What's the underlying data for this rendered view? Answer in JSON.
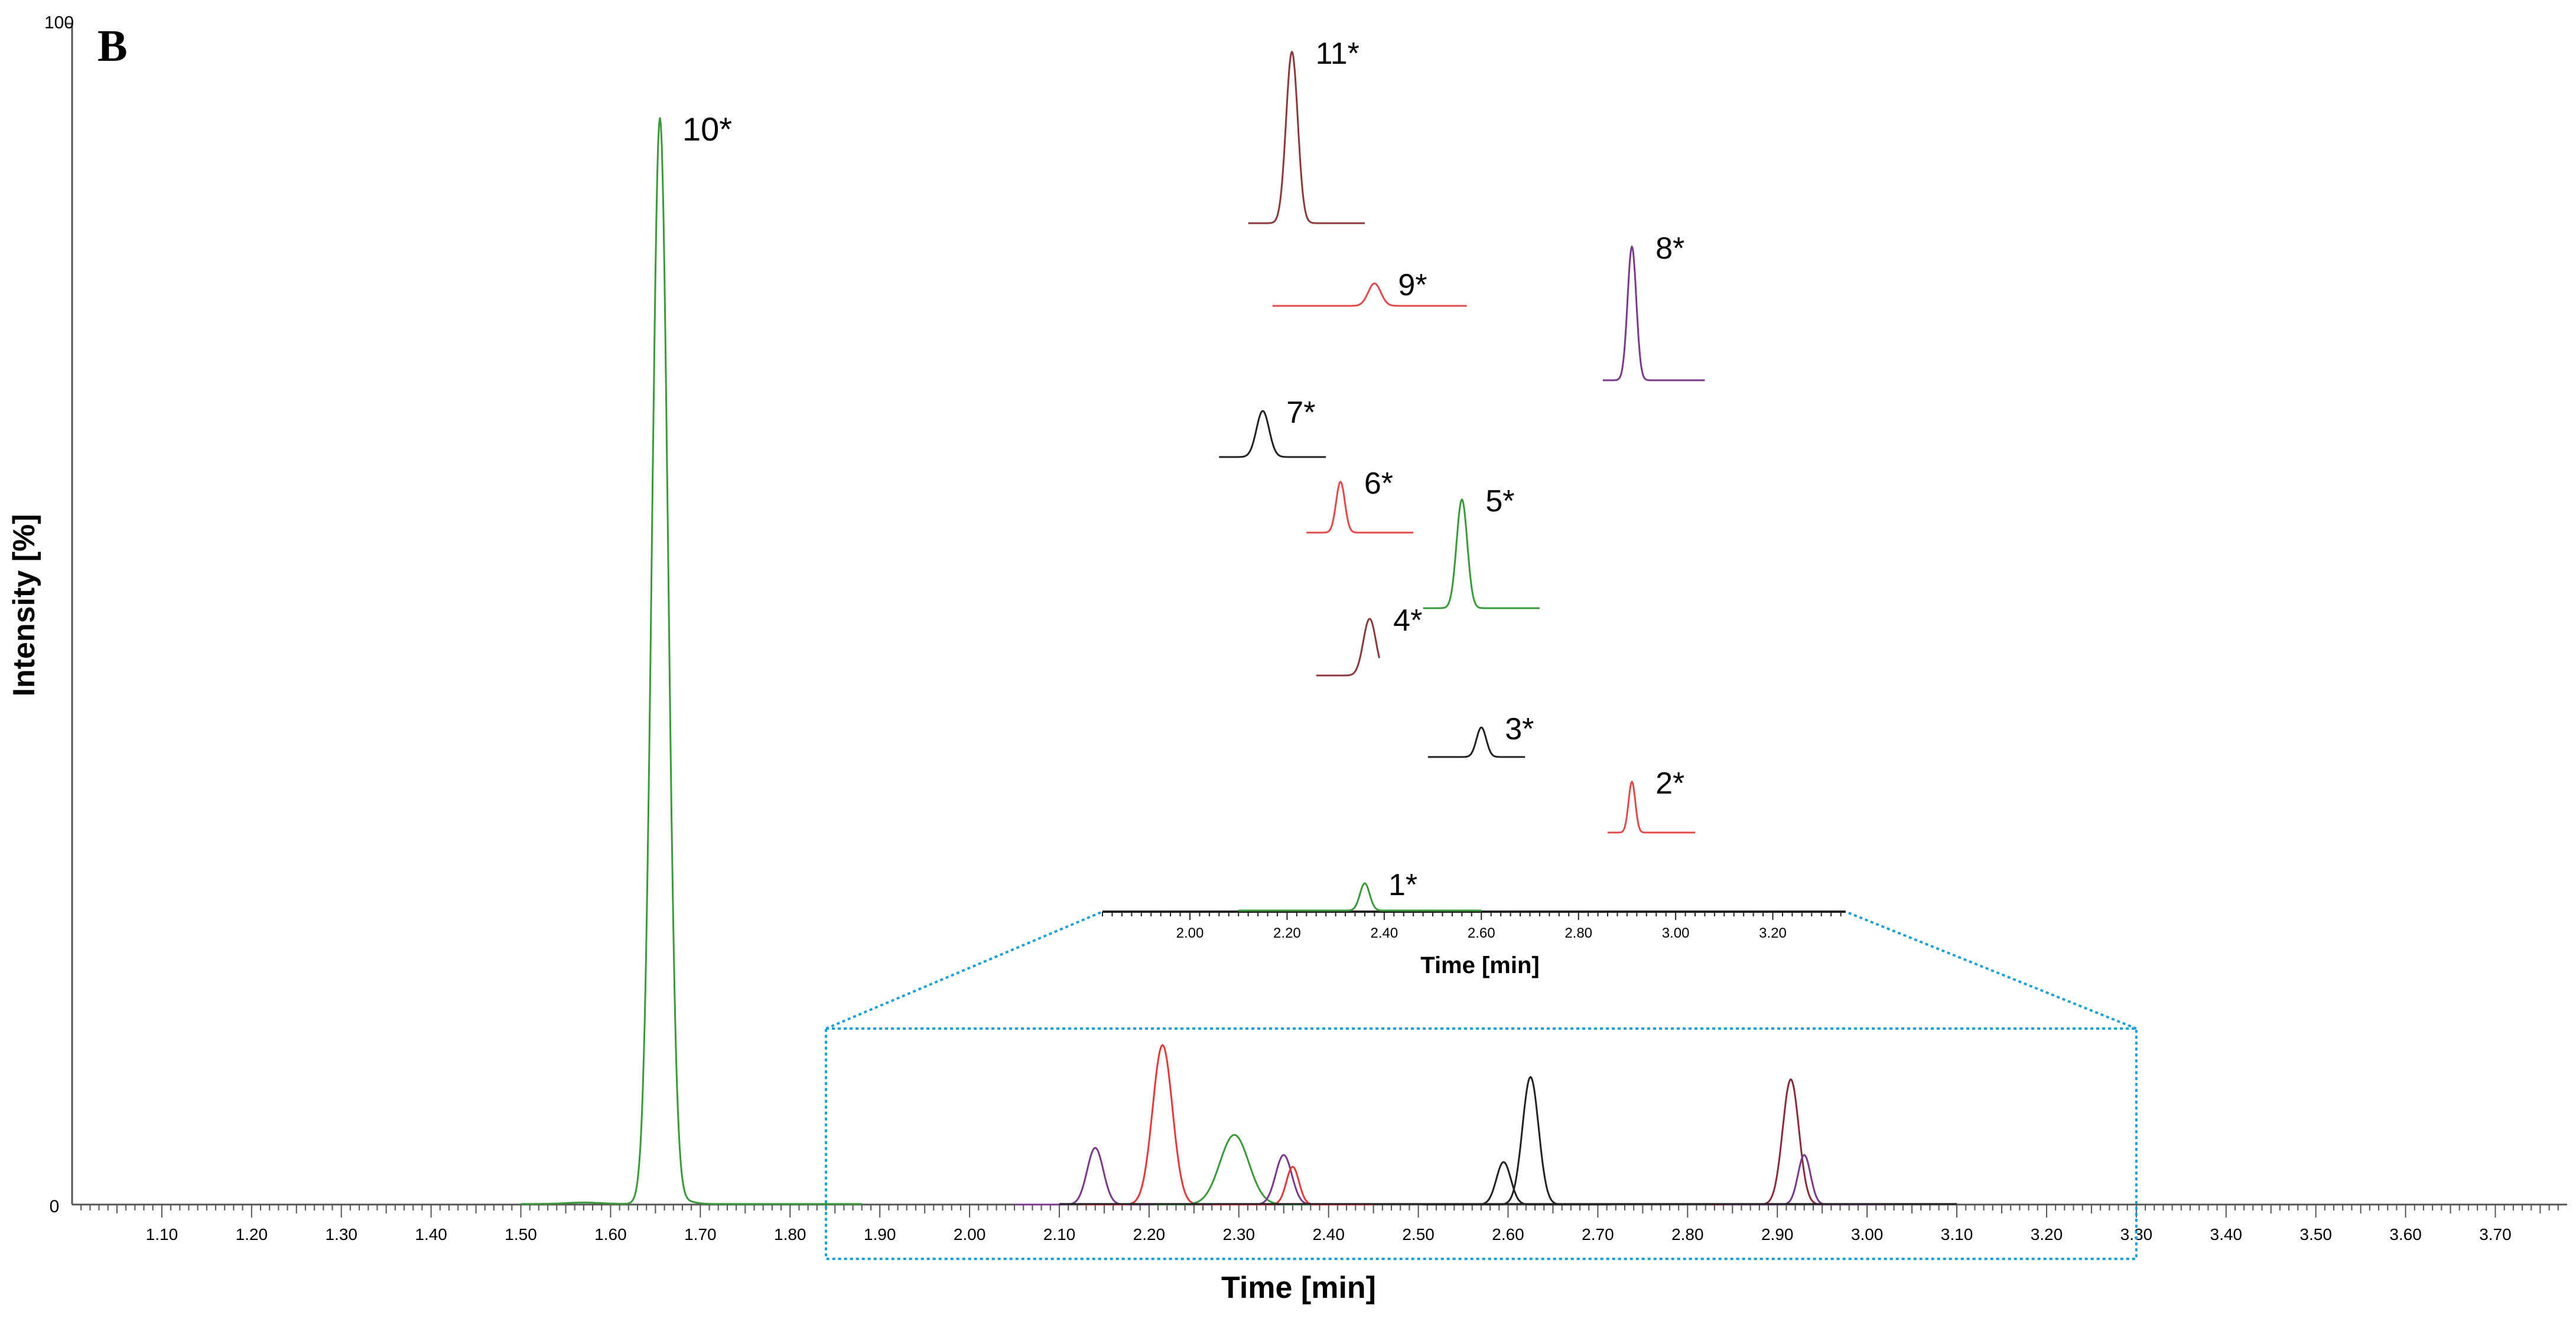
{
  "chart_data": {
    "type": "line",
    "panel_label": "B",
    "xlabel": "Time [min]",
    "ylabel": "Intensity [%]",
    "xlim": [
      1.0,
      3.78
    ],
    "ylim": [
      0,
      100
    ],
    "y_tick_labels": [
      "0",
      "100"
    ],
    "x_ticks": [
      1.1,
      1.2,
      1.3,
      1.4,
      1.5,
      1.6,
      1.7,
      1.8,
      1.9,
      2.0,
      2.1,
      2.2,
      2.3,
      2.4,
      2.5,
      2.6,
      2.7,
      2.8,
      2.9,
      3.0,
      3.1,
      3.2,
      3.3,
      3.4,
      3.5,
      3.6,
      3.7
    ],
    "x_tick_labels": [
      "1.10",
      "1.20",
      "1.30",
      "1.40",
      "1.50",
      "1.60",
      "1.70",
      "1.80",
      "1.90",
      "2.00",
      "2.10",
      "2.20",
      "2.30",
      "2.40",
      "2.50",
      "2.60",
      "2.70",
      "2.80",
      "2.90",
      "3.00",
      "3.10",
      "3.20",
      "3.30",
      "3.40",
      "3.50",
      "3.60",
      "3.70"
    ],
    "main_series": [
      {
        "id": "10",
        "color": "#3a9a3a",
        "rt": 1.655,
        "height": 92,
        "baseline_from": 1.5,
        "baseline_to": 1.88,
        "width": 0.009
      }
    ],
    "overlay_peaks": [
      {
        "color": "#7a3a8a",
        "rt": 2.14,
        "height": 4.8,
        "width": 0.009
      },
      {
        "color": "#e03a3a",
        "rt": 2.215,
        "height": 13.5,
        "width": 0.011
      },
      {
        "color": "#3a9a3a",
        "rt": 2.295,
        "height": 5.9,
        "width": 0.016
      },
      {
        "color": "#7a3a8a",
        "rt": 2.35,
        "height": 4.2,
        "width": 0.009
      },
      {
        "color": "#e03a3a",
        "rt": 2.36,
        "height": 3.2,
        "width": 0.007
      },
      {
        "color": "#222222",
        "rt": 2.595,
        "height": 3.6,
        "width": 0.008
      },
      {
        "color": "#222222",
        "rt": 2.625,
        "height": 10.8,
        "width": 0.009
      },
      {
        "color": "#8a2a3a",
        "rt": 2.915,
        "height": 10.6,
        "width": 0.009
      },
      {
        "color": "#7a3a8a",
        "rt": 2.93,
        "height": 4.2,
        "width": 0.007
      }
    ],
    "overlay_range": [
      2.1,
      3.1
    ],
    "zoom_box": {
      "x": [
        1.84,
        3.3
      ],
      "y": [
        -4.6,
        14.9
      ]
    },
    "inset": {
      "xlabel": "Time [min]",
      "xlim": [
        1.82,
        3.35
      ],
      "x_tick_labels": [
        "2.00",
        "2.20",
        "2.40",
        "2.60",
        "2.80",
        "3.00",
        "3.20"
      ],
      "x_ticks": [
        2.0,
        2.2,
        2.4,
        2.6,
        2.8,
        3.0,
        3.2
      ],
      "axis_y": 24.8,
      "unit_per_pct": 0.0
    },
    "stacked_peaks": [
      {
        "label": "11*",
        "color": "#8a3a3a",
        "rt": 2.21,
        "from": 2.12,
        "to": 2.36,
        "base": 83.1,
        "height": 14.5,
        "width": 0.012
      },
      {
        "label": "9*",
        "color": "#e04a4a",
        "rt": 2.38,
        "from": 2.17,
        "to": 2.57,
        "base": 76.1,
        "height": 1.9,
        "width": 0.013
      },
      {
        "label": "8*",
        "color": "#7a3a8a",
        "rt": 2.91,
        "from": 2.85,
        "to": 3.06,
        "base": 69.8,
        "height": 11.3,
        "width": 0.009
      },
      {
        "label": "7*",
        "color": "#222222",
        "rt": 2.15,
        "from": 2.06,
        "to": 2.28,
        "base": 63.3,
        "height": 3.9,
        "width": 0.013
      },
      {
        "label": "6*",
        "color": "#e04a4a",
        "rt": 2.31,
        "from": 2.24,
        "to": 2.46,
        "base": 56.9,
        "height": 4.3,
        "width": 0.009
      },
      {
        "label": "5*",
        "color": "#3a9a3a",
        "rt": 2.56,
        "from": 2.48,
        "to": 2.72,
        "base": 50.5,
        "height": 9.2,
        "width": 0.011
      },
      {
        "label": "4*",
        "color": "#8a3a3a",
        "rt": 2.37,
        "from": 2.26,
        "to": 2.39,
        "base": 44.8,
        "height": 4.8,
        "width": 0.013
      },
      {
        "label": "3*",
        "color": "#222222",
        "rt": 2.6,
        "from": 2.49,
        "to": 2.69,
        "base": 37.9,
        "height": 2.5,
        "width": 0.01
      },
      {
        "label": "2*",
        "color": "#e04a4a",
        "rt": 2.91,
        "from": 2.86,
        "to": 3.04,
        "base": 31.5,
        "height": 4.3,
        "width": 0.007
      },
      {
        "label": "1*",
        "color": "#3a9a3a",
        "rt": 2.36,
        "from": 2.1,
        "to": 2.6,
        "base": 24.9,
        "height": 2.3,
        "width": 0.01
      }
    ]
  }
}
